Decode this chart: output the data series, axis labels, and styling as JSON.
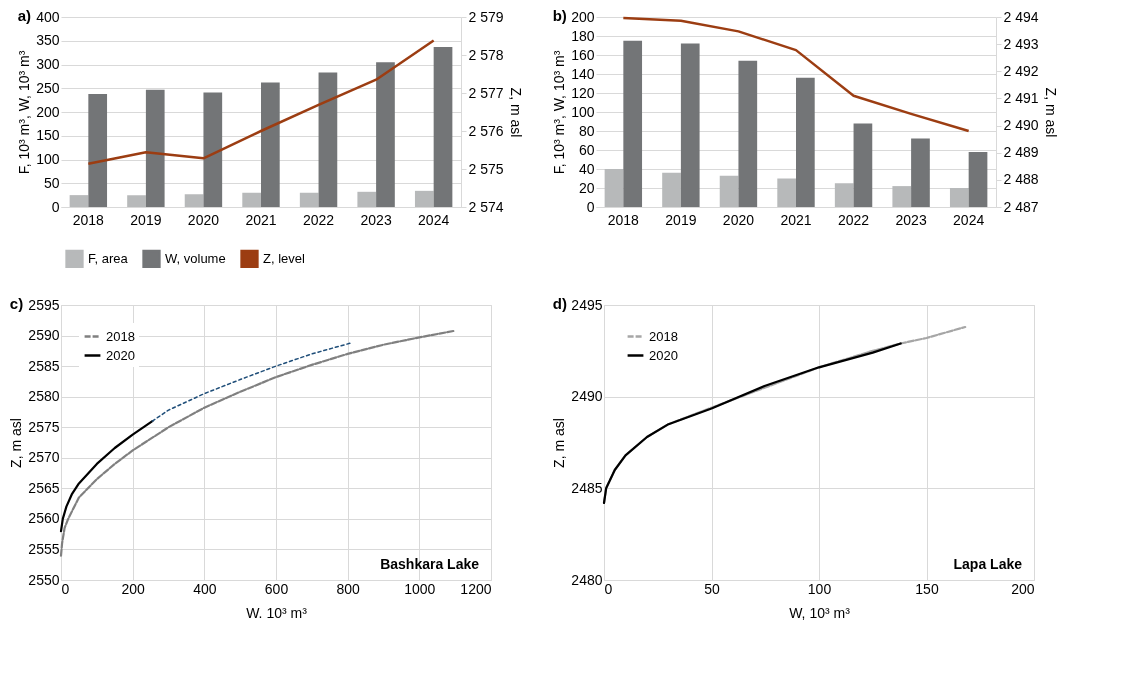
{
  "chart_data": [
    {
      "type": "bar",
      "title": "a)",
      "ylabel": "F, 10³ m³, W, 10³ m³",
      "y2label": "Z, m asl",
      "categories": [
        "2018",
        "2019",
        "2020",
        "2021",
        "2022",
        "2023",
        "2024"
      ],
      "series": [
        {
          "name": "F, area",
          "color": "#b7b9ba",
          "values": [
            25,
            25,
            27,
            30,
            30,
            32,
            34
          ]
        },
        {
          "name": "W, volume",
          "color": "#737577",
          "values": [
            238,
            247,
            241,
            262,
            283,
            305,
            337
          ]
        },
        {
          "name": "Z, level",
          "type": "line",
          "axis": "y2",
          "color": "#9c3d12",
          "values": [
            2575.14,
            2575.44,
            2575.28,
            2576.0,
            2576.69,
            2577.35,
            2578.38
          ]
        }
      ],
      "ylim": [
        0,
        400
      ],
      "yticks": [
        0,
        50,
        100,
        150,
        200,
        250,
        300,
        350,
        400
      ],
      "y2lim": [
        2574,
        2579
      ],
      "y2ticks": [
        {
          "value": 2574,
          "label": "2 574"
        },
        {
          "value": 2575,
          "label": "2 575"
        },
        {
          "value": 2576,
          "label": "2 576"
        },
        {
          "value": 2577,
          "label": "2 577"
        },
        {
          "value": 2578,
          "label": "2 578"
        },
        {
          "value": 2579,
          "label": "2 579"
        }
      ],
      "grid": "y",
      "legend": "bottom"
    },
    {
      "type": "bar",
      "title": "b)",
      "ylabel": "F, 10³ m³, W, 10³ m³",
      "y2label": "Z, m asl",
      "categories": [
        "2018",
        "2019",
        "2020",
        "2021",
        "2022",
        "2023",
        "2024"
      ],
      "series": [
        {
          "name": "F, area",
          "color": "#b7b9ba",
          "values": [
            40,
            36,
            33,
            30,
            25,
            22,
            20
          ]
        },
        {
          "name": "W, volume",
          "color": "#737577",
          "values": [
            175,
            172,
            154,
            136,
            88,
            72,
            58
          ]
        },
        {
          "name": "Z, level",
          "type": "line",
          "axis": "y2",
          "color": "#9c3d12",
          "values": [
            2493.96,
            2493.86,
            2493.47,
            2492.78,
            2491.1,
            2490.43,
            2489.8
          ]
        }
      ],
      "ylim": [
        0,
        200
      ],
      "yticks": [
        0,
        20,
        40,
        60,
        80,
        100,
        120,
        140,
        160,
        180,
        200
      ],
      "y2lim": [
        2487,
        2494
      ],
      "y2ticks": [
        {
          "value": 2487,
          "label": "2 487"
        },
        {
          "value": 2488,
          "label": "2 488"
        },
        {
          "value": 2489,
          "label": "2 489"
        },
        {
          "value": 2490,
          "label": "2 490"
        },
        {
          "value": 2491,
          "label": "2 491"
        },
        {
          "value": 2492,
          "label": "2 492"
        },
        {
          "value": 2493,
          "label": "2 493"
        },
        {
          "value": 2494,
          "label": "2 494"
        }
      ],
      "grid": "y",
      "legend": "bottom"
    },
    {
      "type": "line",
      "title": "c)",
      "xlabel": "W. 10³ m³",
      "ylabel": "Z, m asl",
      "annotations": [
        "Bashkara Lake"
      ],
      "series": [
        {
          "name": "2018",
          "color": "#808080",
          "line_style": "dashed",
          "x": [
            0,
            3,
            10,
            20,
            50,
            100,
            150,
            200,
            300,
            400,
            500,
            600,
            700,
            800,
            900,
            1000,
            1100
          ],
          "values": [
            2554,
            2556,
            2558.5,
            2560,
            2563.5,
            2566.5,
            2569,
            2571.2,
            2575,
            2578.2,
            2580.8,
            2583.2,
            2585.2,
            2587,
            2588.5,
            2589.7,
            2590.8
          ]
        },
        {
          "name": "2020",
          "color": "#000000",
          "line_style": "solid",
          "x": [
            0,
            5,
            15,
            30,
            50,
            100,
            150,
            200,
            255
          ],
          "values": [
            2558,
            2560,
            2562,
            2564,
            2565.8,
            2569,
            2571.6,
            2573.8,
            2576
          ]
        },
        {
          "color": "#1f4e79",
          "line_style": "dotted",
          "x": [
            255,
            300,
            400,
            500,
            600,
            700,
            810
          ],
          "values": [
            2576,
            2577.8,
            2580.5,
            2582.8,
            2585,
            2587,
            2588.8
          ]
        }
      ],
      "xlim": [
        0,
        1200
      ],
      "xticks": [
        0,
        200,
        400,
        600,
        800,
        1000,
        1200
      ],
      "ylim": [
        2550,
        2595
      ],
      "yticks": [
        2550,
        2555,
        2560,
        2565,
        2570,
        2575,
        2580,
        2585,
        2590,
        2595
      ],
      "grid": true,
      "legend": "top left"
    },
    {
      "type": "line",
      "title": "d)",
      "xlabel": "W, 10³ m³",
      "ylabel": "Z, m asl",
      "annotations": [
        "Lapa Lake"
      ],
      "series": [
        {
          "name": "2018",
          "color": "#a6a6a6",
          "line_style": "dashed",
          "x": [
            0,
            1,
            5,
            10,
            20,
            30,
            50,
            75,
            100,
            125,
            138,
            150,
            168
          ],
          "values": [
            2484.2,
            2485,
            2486,
            2486.8,
            2487.8,
            2488.5,
            2489.4,
            2490.5,
            2491.6,
            2492.5,
            2492.9,
            2493.2,
            2493.8
          ]
        },
        {
          "name": "2020",
          "color": "#000000",
          "line_style": "solid",
          "x": [
            0,
            1,
            5,
            10,
            20,
            30,
            50,
            75,
            100,
            125,
            138
          ],
          "values": [
            2484.2,
            2485,
            2486,
            2486.8,
            2487.8,
            2488.5,
            2489.35,
            2490.6,
            2491.6,
            2492.4,
            2492.9
          ]
        }
      ],
      "xlim": [
        0,
        200
      ],
      "xticks": [
        0,
        50,
        100,
        150,
        200
      ],
      "ylim": [
        2480,
        2495
      ],
      "yticks": [
        2480,
        2485,
        2490,
        2495
      ],
      "grid": true,
      "legend": "top left"
    }
  ]
}
